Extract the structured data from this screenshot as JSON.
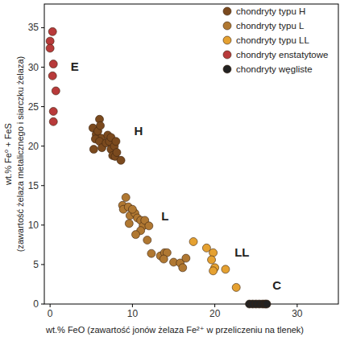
{
  "chart_data": {
    "type": "scatter",
    "x_label": "wt.% FeO  (zawartość jonów żelaza Fe²⁺ w przeliczeniu na tlenek)",
    "y_label": [
      "wt.% Fe⁰ + FeS",
      "(zawartość żelaza metalicznego i siarczku żelaza)"
    ],
    "xlim": [
      -0.7,
      35
    ],
    "ylim": [
      0,
      38
    ],
    "xticks": [
      0,
      10,
      20,
      30
    ],
    "yticks": [
      0,
      5,
      10,
      15,
      20,
      25,
      30,
      35
    ],
    "legend": "top-right",
    "marker": "circle",
    "series": [
      {
        "name": "chondryty typu H",
        "color": "#7b4a1e",
        "x": [
          5.2,
          5.6,
          5.8,
          6.0,
          6.1,
          6.2,
          5.5,
          6.0,
          6.3,
          5.3,
          6.8,
          7.0,
          7.2,
          7.4,
          7.4,
          7.8,
          8.0,
          7.6,
          7.9,
          8.6,
          8.1
        ],
        "values": [
          22.3,
          21.5,
          21.9,
          23.4,
          22.6,
          21.0,
          20.9,
          20.6,
          19.8,
          19.6,
          20.4,
          21.4,
          20.6,
          21.1,
          19.6,
          20.0,
          20.6,
          18.8,
          18.7,
          18.2,
          19.2
        ]
      },
      {
        "name": "chondryty typu L",
        "color": "#b07832",
        "x": [
          8.8,
          9.2,
          8.9,
          9.5,
          9.7,
          9.6,
          10.3,
          10.6,
          11.0,
          11.3,
          11.5,
          11.0,
          12.0,
          11.8,
          10.4,
          12.3,
          13.4,
          13.9,
          14.2,
          13.8,
          15.0,
          15.8,
          16.1,
          16.5,
          10.0
        ],
        "values": [
          12.5,
          13.5,
          12.0,
          12.3,
          11.2,
          10.2,
          11.5,
          10.9,
          10.6,
          9.9,
          10.6,
          9.3,
          9.9,
          8.1,
          8.8,
          6.4,
          6.1,
          6.5,
          6.5,
          5.7,
          5.3,
          5.2,
          4.6,
          5.8,
          12.0
        ]
      },
      {
        "name": "chondryty typu LL",
        "color": "#e5a131",
        "x": [
          17.4,
          19.0,
          19.8,
          19.6,
          20.0,
          21.3,
          19.8,
          22.6
        ],
        "values": [
          7.9,
          7.1,
          6.5,
          5.6,
          4.6,
          4.4,
          4.2,
          2.1
        ]
      },
      {
        "name": "chondryty enstatytowe",
        "color": "#b83a3a",
        "x": [
          0.3,
          0.0,
          0.0,
          0.4,
          0.3,
          0.7,
          0.4,
          0.4
        ],
        "values": [
          34.5,
          33.3,
          32.4,
          30.4,
          28.9,
          27.0,
          24.4,
          23.1
        ]
      },
      {
        "name": "chondryty węgliste",
        "color": "#222222",
        "x": [
          24.2,
          24.6,
          25.0,
          25.4,
          25.8,
          26.1,
          26.3
        ],
        "values": [
          0,
          0,
          0,
          0,
          0,
          0,
          0
        ]
      }
    ],
    "annotations": [
      {
        "text": "E",
        "x": 2.5,
        "y": 29.5
      },
      {
        "text": "H",
        "x": 10.2,
        "y": 21.4
      },
      {
        "text": "L",
        "x": 13.5,
        "y": 10.6
      },
      {
        "text": "LL",
        "x": 22.4,
        "y": 6.0
      },
      {
        "text": "C",
        "x": 27.0,
        "y": 1.8
      }
    ]
  }
}
